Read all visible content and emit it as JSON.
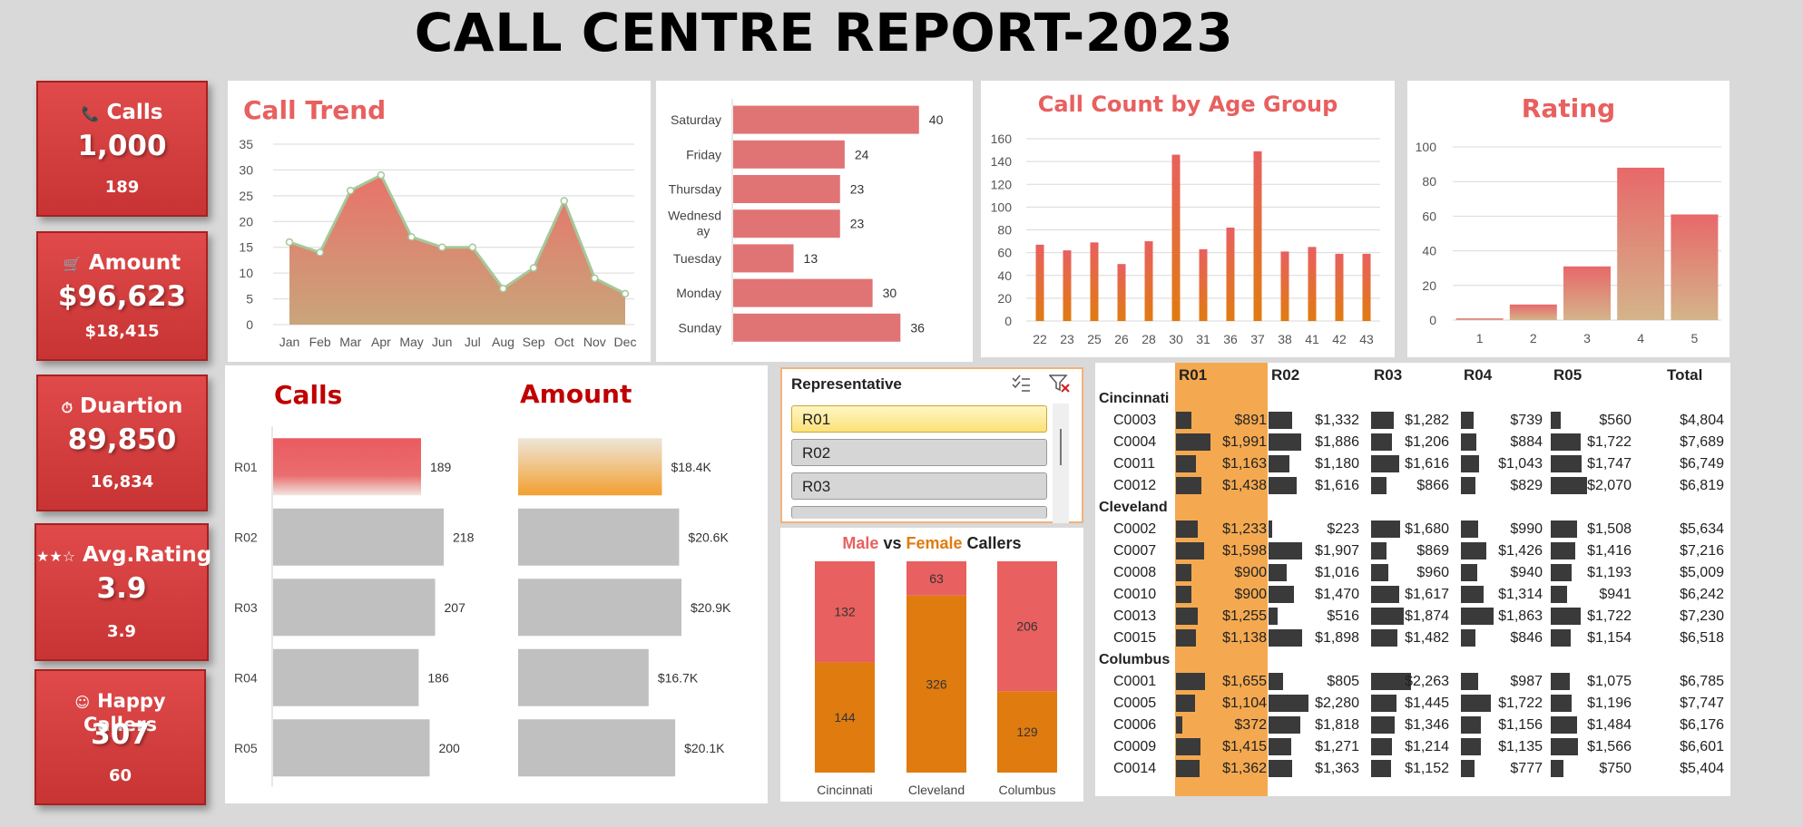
{
  "title": "CALL CENTRE REPORT-2023",
  "kpis": [
    {
      "icon": "phone-icon",
      "glyph": "📞",
      "label": "Calls",
      "value": "1,000",
      "sub": "189"
    },
    {
      "icon": "cart-icon",
      "glyph": "🛒",
      "label": "Amount",
      "value": "$96,623",
      "sub": "$18,415"
    },
    {
      "icon": "timer-icon",
      "glyph": "⏱",
      "label": "Duartion",
      "value": "89,850",
      "sub": "16,834"
    },
    {
      "icon": "stars-icon",
      "glyph": "★★☆",
      "label": "Avg.Rating",
      "value": "3.9",
      "sub": "3.9"
    },
    {
      "icon": "smiley-icon",
      "glyph": "☺",
      "label": "Happy Callers",
      "value": "307",
      "sub": "60"
    }
  ],
  "colors": {
    "red": "#e8605f",
    "orange": "#e07b10",
    "gray": "#c0c0c0",
    "highlight": "#f4a950",
    "dark_bar": "#3a3a3a"
  },
  "chart_data": [
    {
      "type": "area",
      "title": "Call Trend",
      "categories": [
        "Jan",
        "Feb",
        "Mar",
        "Apr",
        "May",
        "Jun",
        "Jul",
        "Aug",
        "Sep",
        "Oct",
        "Nov",
        "Dec"
      ],
      "values": [
        16,
        14,
        26,
        29,
        17,
        15,
        15,
        7,
        11,
        24,
        9,
        6
      ],
      "ylim": [
        0,
        35
      ],
      "yticks": [
        0,
        5,
        10,
        15,
        20,
        25,
        30,
        35
      ],
      "grid": true
    },
    {
      "type": "bar",
      "orientation": "horizontal",
      "categories": [
        "Saturday",
        "Friday",
        "Thursday",
        "Wednesday",
        "Tuesday",
        "Monday",
        "Sunday"
      ],
      "category_labels": [
        "Saturday",
        "Friday",
        "Thursday",
        "Wednesd|ay",
        "Tuesday",
        "Monday",
        "Sunday"
      ],
      "values": [
        40,
        24,
        23,
        23,
        13,
        30,
        36
      ],
      "xlim": [
        0,
        50
      ]
    },
    {
      "type": "bar",
      "title": "Call Count by Age Group",
      "categories": [
        "22",
        "23",
        "25",
        "26",
        "28",
        "30",
        "31",
        "36",
        "37",
        "38",
        "41",
        "42",
        "43"
      ],
      "values": [
        67,
        62,
        69,
        50,
        70,
        146,
        63,
        82,
        149,
        61,
        65,
        59,
        59
      ],
      "ylim": [
        0,
        160
      ],
      "yticks": [
        0,
        20,
        40,
        60,
        80,
        100,
        120,
        140,
        160
      ],
      "grid": true
    },
    {
      "type": "bar",
      "title": "Rating",
      "categories": [
        "1",
        "2",
        "3",
        "4",
        "5"
      ],
      "values": [
        1,
        9,
        31,
        88,
        61
      ],
      "ylim": [
        0,
        100
      ],
      "yticks": [
        0,
        20,
        40,
        60,
        80,
        100
      ],
      "grid": true
    },
    {
      "type": "bar",
      "orientation": "horizontal",
      "title": "Calls",
      "categories": [
        "R01",
        "R02",
        "R03",
        "R04",
        "R05"
      ],
      "values": [
        189,
        218,
        207,
        186,
        200
      ],
      "selected": "R01"
    },
    {
      "type": "bar",
      "orientation": "horizontal",
      "title": "Amount",
      "categories": [
        "R01",
        "R02",
        "R03",
        "R04",
        "R05"
      ],
      "values": [
        18.4,
        20.6,
        20.9,
        16.7,
        20.1
      ],
      "labels": [
        "$18.4K",
        "$20.6K",
        "$20.9K",
        "$16.7K",
        "$20.1K"
      ],
      "selected": "R01"
    },
    {
      "type": "bar",
      "stacked": true,
      "title_parts": [
        "Male",
        " vs ",
        "Female",
        " Callers"
      ],
      "categories": [
        "Cincinnati",
        "Cleveland",
        "Columbus"
      ],
      "series": [
        {
          "name": "Female",
          "values": [
            144,
            326,
            129
          ]
        },
        {
          "name": "Male",
          "values": [
            132,
            63,
            206
          ]
        }
      ]
    },
    {
      "type": "table",
      "headers": [
        "R01",
        "R02",
        "R03",
        "R04",
        "R05",
        "Total"
      ],
      "highlight_column": "R01",
      "groups": [
        {
          "name": "Cincinnati",
          "rows": [
            {
              "id": "C0003",
              "values": [
                891,
                1332,
                1282,
                739,
                560
              ],
              "labels": [
                "$891",
                "$1,332",
                "$1,282",
                "$739",
                "$560"
              ],
              "total": "$4,804"
            },
            {
              "id": "C0004",
              "values": [
                1991,
                1886,
                1206,
                884,
                1722
              ],
              "labels": [
                "$1,991",
                "$1,886",
                "$1,206",
                "$884",
                "$1,722"
              ],
              "total": "$7,689"
            },
            {
              "id": "C0011",
              "values": [
                1163,
                1180,
                1616,
                1043,
                1747
              ],
              "labels": [
                "$1,163",
                "$1,180",
                "$1,616",
                "$1,043",
                "$1,747"
              ],
              "total": "$6,749"
            },
            {
              "id": "C0012",
              "values": [
                1438,
                1616,
                866,
                829,
                2070
              ],
              "labels": [
                "$1,438",
                "$1,616",
                "$866",
                "$829",
                "$2,070"
              ],
              "total": "$6,819"
            }
          ]
        },
        {
          "name": "Cleveland",
          "rows": [
            {
              "id": "C0002",
              "values": [
                1233,
                223,
                1680,
                990,
                1508
              ],
              "labels": [
                "$1,233",
                "$223",
                "$1,680",
                "$990",
                "$1,508"
              ],
              "total": "$5,634"
            },
            {
              "id": "C0007",
              "values": [
                1598,
                1907,
                869,
                1426,
                1416
              ],
              "labels": [
                "$1,598",
                "$1,907",
                "$869",
                "$1,426",
                "$1,416"
              ],
              "total": "$7,216"
            },
            {
              "id": "C0008",
              "values": [
                900,
                1016,
                960,
                940,
                1193
              ],
              "labels": [
                "$900",
                "$1,016",
                "$960",
                "$940",
                "$1,193"
              ],
              "total": "$5,009"
            },
            {
              "id": "C0010",
              "values": [
                900,
                1470,
                1617,
                1314,
                941
              ],
              "labels": [
                "$900",
                "$1,470",
                "$1,617",
                "$1,314",
                "$941"
              ],
              "total": "$6,242"
            },
            {
              "id": "C0013",
              "values": [
                1255,
                516,
                1874,
                1863,
                1722
              ],
              "labels": [
                "$1,255",
                "$516",
                "$1,874",
                "$1,863",
                "$1,722"
              ],
              "total": "$7,230"
            },
            {
              "id": "C0015",
              "values": [
                1138,
                1898,
                1482,
                846,
                1154
              ],
              "labels": [
                "$1,138",
                "$1,898",
                "$1,482",
                "$846",
                "$1,154"
              ],
              "total": "$6,518"
            }
          ]
        },
        {
          "name": "Columbus",
          "rows": [
            {
              "id": "C0001",
              "values": [
                1655,
                805,
                2263,
                987,
                1075
              ],
              "labels": [
                "$1,655",
                "$805",
                "$2,263",
                "$987",
                "$1,075"
              ],
              "total": "$6,785"
            },
            {
              "id": "C0005",
              "values": [
                1104,
                2280,
                1445,
                1722,
                1196
              ],
              "labels": [
                "$1,104",
                "$2,280",
                "$1,445",
                "$1,722",
                "$1,196"
              ],
              "total": "$7,747"
            },
            {
              "id": "C0006",
              "values": [
                372,
                1818,
                1346,
                1156,
                1484
              ],
              "labels": [
                "$372",
                "$1,818",
                "$1,346",
                "$1,156",
                "$1,484"
              ],
              "total": "$6,176"
            },
            {
              "id": "C0009",
              "values": [
                1415,
                1271,
                1214,
                1135,
                1566
              ],
              "labels": [
                "$1,415",
                "$1,271",
                "$1,214",
                "$1,135",
                "$1,566"
              ],
              "total": "$6,601"
            },
            {
              "id": "C0014",
              "values": [
                1362,
                1363,
                1152,
                777,
                750
              ],
              "labels": [
                "$1,362",
                "$1,363",
                "$1,152",
                "$777",
                "$750"
              ],
              "total": "$5,404"
            }
          ]
        }
      ]
    }
  ],
  "slicer": {
    "title": "Representative",
    "items": [
      "R01",
      "R02",
      "R03"
    ],
    "selected": "R01",
    "multi_select_icon": "multi-select-icon",
    "clear_filter_icon": "clear-filter-icon"
  }
}
